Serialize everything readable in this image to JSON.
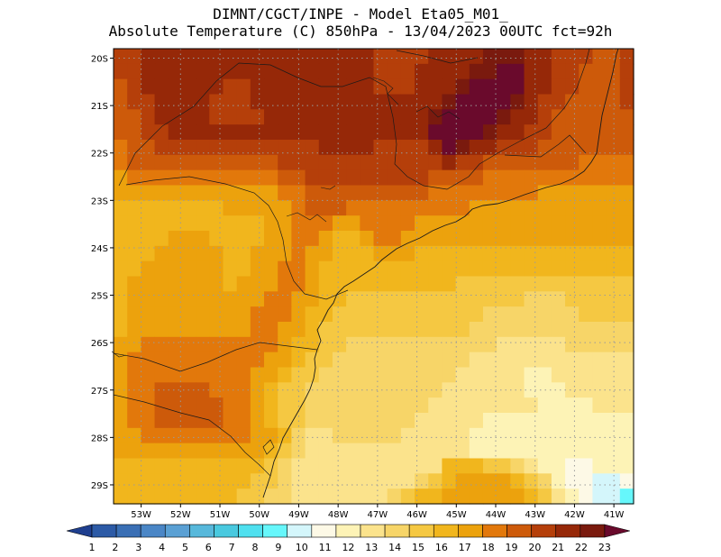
{
  "title": {
    "line1": "DIMNT/CGCT/INPE -  Model Eta05_M01_",
    "line2": "Absolute Temperature (C) 850hPa -  13/04/2023 00UTC fct=92h"
  },
  "map": {
    "lon_range": [
      -53.7,
      -40.5
    ],
    "lat_range": [
      -29.4,
      -19.8
    ],
    "lon_ticks": [
      {
        "value": -53,
        "label": "53W"
      },
      {
        "value": -52,
        "label": "52W"
      },
      {
        "value": -51,
        "label": "51W"
      },
      {
        "value": -50,
        "label": "50W"
      },
      {
        "value": -49,
        "label": "49W"
      },
      {
        "value": -48,
        "label": "48W"
      },
      {
        "value": -47,
        "label": "47W"
      },
      {
        "value": -46,
        "label": "46W"
      },
      {
        "value": -45,
        "label": "45W"
      },
      {
        "value": -44,
        "label": "44W"
      },
      {
        "value": -43,
        "label": "43W"
      },
      {
        "value": -42,
        "label": "42W"
      },
      {
        "value": -41,
        "label": "41W"
      }
    ],
    "lat_ticks": [
      {
        "value": -20,
        "label": "20S"
      },
      {
        "value": -21,
        "label": "21S"
      },
      {
        "value": -22,
        "label": "22S"
      },
      {
        "value": -23,
        "label": "23S"
      },
      {
        "value": -24,
        "label": "24S"
      },
      {
        "value": -25,
        "label": "25S"
      },
      {
        "value": -26,
        "label": "26S"
      },
      {
        "value": -27,
        "label": "27S"
      },
      {
        "value": -28,
        "label": "28S"
      },
      {
        "value": -29,
        "label": "29S"
      }
    ],
    "grid": true,
    "grid_style": "dotted"
  },
  "colorbar": {
    "labels": [
      "1",
      "2",
      "3",
      "4",
      "5",
      "6",
      "7",
      "8",
      "9",
      "10",
      "11",
      "12",
      "13",
      "14",
      "15",
      "16",
      "17",
      "18",
      "19",
      "20",
      "21",
      "22",
      "23"
    ],
    "colors": [
      "#1f3f8f",
      "#2c5aa6",
      "#3a6fb5",
      "#4a86c6",
      "#5aa0d4",
      "#57b8db",
      "#49c9df",
      "#4fe0ef",
      "#66f7fb",
      "#d4f6fb",
      "#fdf9e6",
      "#fdf3b6",
      "#fbe38c",
      "#f7d568",
      "#f5c842",
      "#f1b61d",
      "#eca20d",
      "#e2780b",
      "#cd5a0a",
      "#b53f0a",
      "#962808",
      "#7a1a0e",
      "#6a0a2c"
    ],
    "arrows": true
  },
  "field": [
    "(20,20,21,21,21,21,21,21,21,21,21,21,21,21,21,21,21,21,21,20,20,20,20,21,21,21,21,22,22,22,21,21,20,20,20,19,19,20)",
    "(20,20,21,21,21,21,21,21,21,21,21,21,21,21,21,21,21,21,21,20,20,20,21,21,21,21,22,22,23,23,21,21,20,20,19,19,19,20)",
    "(19,20,21,21,21,21,21,21,20,20,21,21,21,21,21,21,21,21,21,20,20,20,21,21,21,22,23,23,23,23,21,21,20,20,19,19,19,20)",
    "(19,20,20,21,21,21,21,20,20,20,21,21,21,21,21,21,21,21,21,21,21,21,21,21,22,23,23,23,23,22,21,20,20,19,19,19,19,20)",
    "(19,19,20,21,21,21,21,20,20,20,20,21,21,21,21,21,21,21,21,21,21,21,21,22,23,23,23,23,22,21,21,20,19,19,19,19,19,19)",
    "(19,19,20,20,21,21,21,21,21,21,21,21,21,21,21,21,21,21,21,21,21,21,21,23,23,23,23,22,21,21,20,20,19,19,19,19,19,19)",
    "(18,19,19,20,20,20,20,20,20,20,20,20,20,20,20,21,21,21,21,20,20,20,20,21,23,22,21,21,20,20,20,19,19,19,19,19,19,19)",
    "(18,19,19,19,19,19,19,19,19,19,19,19,20,20,20,20,20,20,20,20,20,20,20,20,21,20,20,19,19,19,19,19,19,19,18,18,18,18)",
    "(17,18,18,18,18,18,18,18,18,18,18,18,19,19,20,20,20,20,20,20,20,20,20,19,19,19,19,18,18,18,18,18,18,18,18,18,18,18)",
    "(17,17,17,17,17,17,17,17,17,17,17,17,18,18,19,19,19,19,19,19,19,19,19,18,18,18,18,18,18,18,18,17,17,17,17,17,17,17)",
    "(16,16,16,16,16,16,16,16,17,17,17,17,17,18,19,19,19,18,18,18,18,18,18,18,18,18,17,17,17,17,17,17,17,17,17,17,17,17)",
    "(16,16,16,16,16,16,16,16,16,16,16,17,17,18,18,18,17,17,18,18,18,18,17,17,17,17,17,17,17,17,17,17,17,17,17,17,17,17)",
    "(16,16,16,16,17,17,17,16,16,16,16,17,17,18,18,17,16,16,17,18,18,17,17,17,17,17,17,17,17,17,17,17,17,17,17,17,17,17)",
    "(16,16,16,17,17,17,17,17,16,16,17,17,17,18,17,17,16,16,16,17,17,17,16,16,16,16,16,16,16,16,16,16,16,16,16,16,16,16)",
    "(16,16,17,17,17,17,17,17,16,16,17,17,18,18,17,16,16,16,16,16,16,16,16,16,16,16,16,16,16,16,16,16,16,16,16,16,16,16)",
    "(16,17,17,17,17,17,17,17,16,17,17,17,18,18,17,16,16,16,16,16,16,16,16,16,16,15,15,15,15,15,15,15,15,15,15,15,15,15)",
    "(16,17,17,17,17,17,17,17,17,17,17,18,18,17,17,16,16,15,15,15,15,15,15,15,15,15,15,15,15,15,14,14,14,15,15,15,15,15)",
    "(16,17,17,17,17,17,17,17,17,17,18,18,18,17,16,16,15,15,15,15,15,15,15,15,15,15,15,14,14,14,14,14,14,14,15,15,15,15)",
    "(16,17,17,17,17,17,17,17,17,17,18,18,17,17,16,15,15,15,15,15,15,15,15,15,15,15,14,14,14,14,14,14,14,14,14,14,14,14)",
    "(17,17,18,18,18,18,18,18,18,18,18,18,17,16,16,15,15,14,14,14,14,14,14,14,14,14,14,14,13,13,13,13,13,14,14,14,14,14)",
    "(17,18,18,18,18,18,18,18,18,18,18,17,17,16,15,15,14,14,14,14,14,14,14,14,14,14,13,13,13,13,13,13,13,13,13,13,13,13)",
    "(17,18,18,18,18,18,18,18,18,18,17,17,16,15,15,14,14,14,14,14,14,14,14,14,14,13,13,13,13,13,12,12,13,13,13,13,13,13)",
    "(17,18,18,19,19,19,19,18,18,18,17,16,15,15,14,14,14,14,14,14,14,14,14,14,13,13,13,13,13,13,12,12,12,13,13,13,13,13)",
    "(17,18,18,19,19,19,19,19,18,18,17,16,15,15,14,14,14,14,14,14,14,14,14,13,13,13,13,13,13,13,13,12,12,12,12,13,13,13)",
    "(17,18,18,19,19,19,19,19,18,18,17,16,15,15,14,14,14,14,14,14,14,14,13,13,13,13,13,12,12,12,12,12,12,12,12,12,12,12)",
    "(17,17,18,18,18,18,18,18,18,18,17,17,16,14,13,13,14,14,14,14,14,13,13,13,13,13,12,12,12,12,12,12,12,12,12,12,12,12)",
    "(17,17,17,17,17,17,17,17,17,17,17,16,15,14,13,13,13,13,13,13,13,13,13,13,13,13,12,12,12,12,12,12,12,12,12,12,12,12)",
    "(16,16,16,16,16,16,16,16,16,16,16,15,14,13,13,13,13,13,13,13,13,13,13,13,16,16,16,15,15,14,13,12,12,11,11,12,12,12)",
    "(16,16,16,16,16,16,16,16,16,16,15,15,14,13,13,13,13,13,13,13,13,13,14,15,16,17,17,17,17,16,15,14,12,11,11,10,10,11)",
    "(16,16,16,16,16,16,16,16,16,15,15,14,14,13,13,13,13,13,13,13,14,15,16,16,17,17,17,17,17,17,16,15,13,12,11,10,10,9)"
  ]
}
